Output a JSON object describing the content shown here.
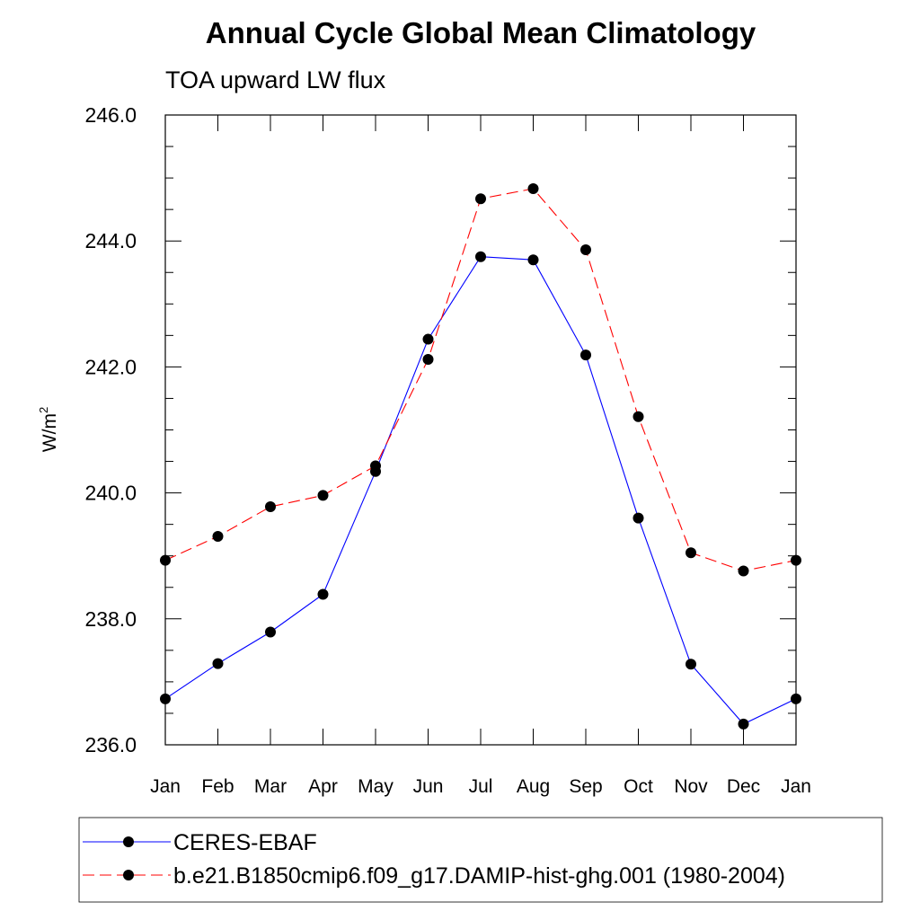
{
  "chart_data": {
    "type": "line",
    "title": "Annual Cycle Global Mean Climatology",
    "subtitle": "TOA upward LW flux",
    "ylabel": "W/m",
    "ylabel_sup": "2",
    "xlabel": "",
    "categories": [
      "Jan",
      "Feb",
      "Mar",
      "Apr",
      "May",
      "Jun",
      "Jul",
      "Aug",
      "Sep",
      "Oct",
      "Nov",
      "Dec",
      "Jan"
    ],
    "ylim": [
      236.0,
      246.0
    ],
    "yticks": [
      236.0,
      238.0,
      240.0,
      242.0,
      244.0,
      246.0
    ],
    "ytick_labels": [
      "236.0",
      "238.0",
      "240.0",
      "242.0",
      "244.0",
      "246.0"
    ],
    "series": [
      {
        "name": "CERES-EBAF",
        "color": "#0000ff",
        "dash": "solid",
        "values": [
          236.73,
          237.29,
          237.79,
          238.39,
          240.34,
          242.44,
          243.75,
          243.7,
          242.19,
          239.6,
          237.28,
          236.33,
          236.73
        ]
      },
      {
        "name": "b.e21.B1850cmip6.f09_g17.DAMIP-hist-ghg.001 (1980-2004)",
        "color": "#ff0000",
        "dash": "dashed",
        "values": [
          238.93,
          239.31,
          239.78,
          239.96,
          240.43,
          242.12,
          244.67,
          244.83,
          243.86,
          241.21,
          239.05,
          238.76,
          238.93
        ]
      }
    ],
    "legend_position": "bottom"
  }
}
